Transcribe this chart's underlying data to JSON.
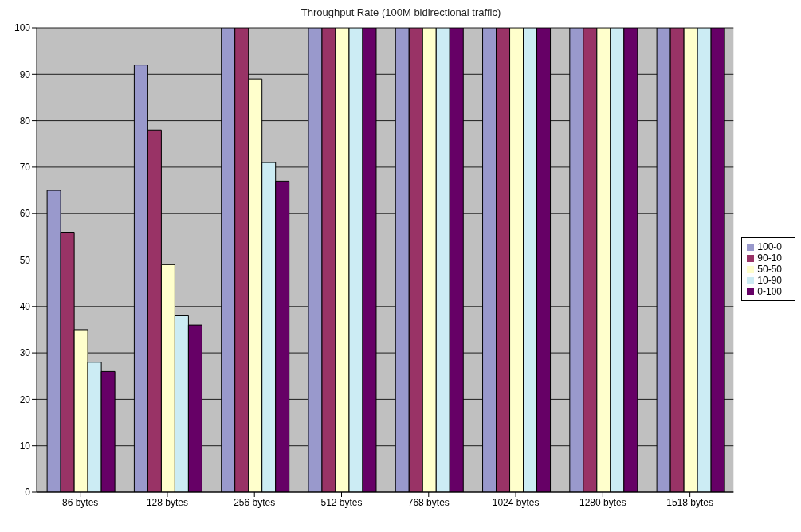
{
  "chart_data": {
    "type": "bar",
    "title": "Throughput Rate (100M bidirectional traffic)",
    "categories": [
      "86 bytes",
      "128 bytes",
      "256 bytes",
      "512 bytes",
      "768 bytes",
      "1024 bytes",
      "1280 bytes",
      "1518 bytes"
    ],
    "series": [
      {
        "name": "100-0",
        "color": "#9999cc",
        "values": [
          65,
          92,
          100,
          100,
          100,
          100,
          100,
          100
        ]
      },
      {
        "name": "90-10",
        "color": "#993366",
        "values": [
          56,
          78,
          100,
          100,
          100,
          100,
          100,
          100
        ]
      },
      {
        "name": "50-50",
        "color": "#ffffcc",
        "values": [
          35,
          49,
          89,
          100,
          100,
          100,
          100,
          100
        ]
      },
      {
        "name": "10-90",
        "color": "#ccecf4",
        "values": [
          28,
          38,
          71,
          100,
          100,
          100,
          100,
          100
        ]
      },
      {
        "name": "0-100",
        "color": "#660066",
        "values": [
          26,
          36,
          67,
          100,
          100,
          100,
          100,
          100
        ]
      }
    ],
    "ylim": [
      0,
      100
    ],
    "yticks": [
      0,
      10,
      20,
      30,
      40,
      50,
      60,
      70,
      80,
      90,
      100
    ],
    "grid": "y",
    "legend": "right"
  }
}
